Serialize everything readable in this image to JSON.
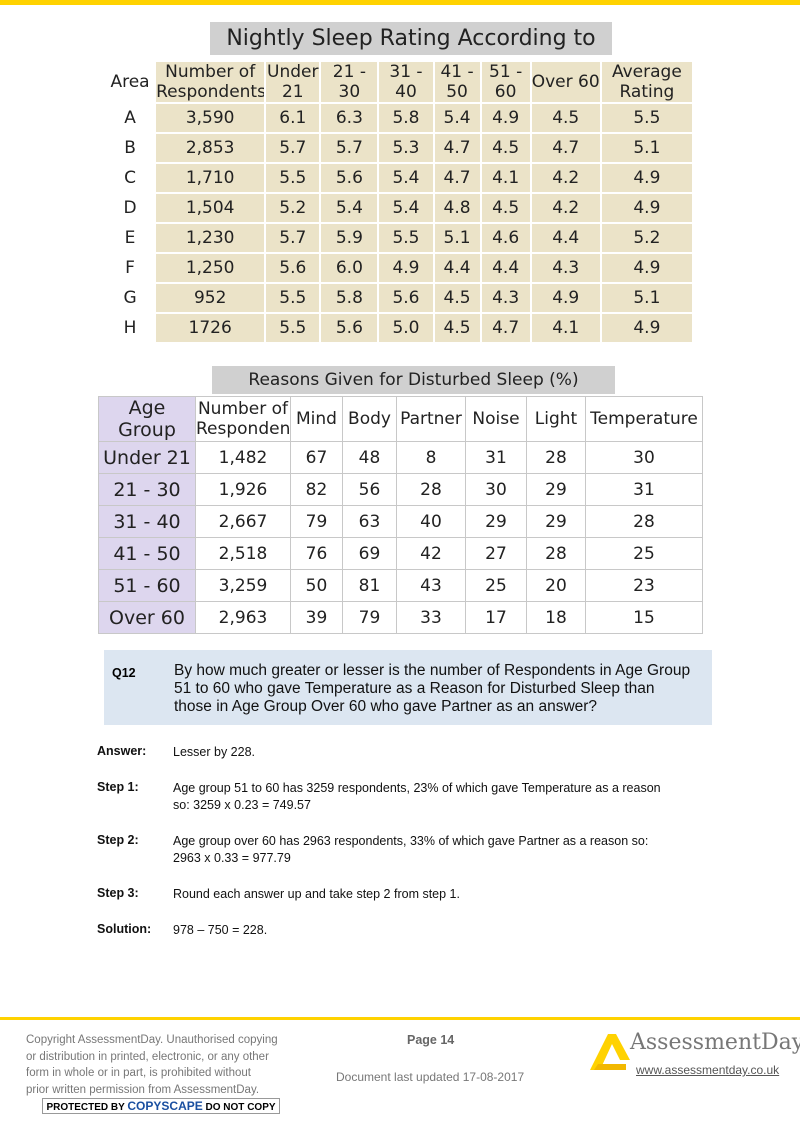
{
  "table1": {
    "title": "Nightly Sleep Rating According to Age",
    "header": [
      "Area",
      "Number of Respondents",
      "Under 21",
      "21 - 30",
      "31 - 40",
      "41 - 50",
      "51 - 60",
      "Over 60",
      "Average Rating"
    ],
    "rows": [
      [
        "A",
        "3,590",
        "6.1",
        "6.3",
        "5.8",
        "5.4",
        "4.9",
        "4.5",
        "5.5"
      ],
      [
        "B",
        "2,853",
        "5.7",
        "5.7",
        "5.3",
        "4.7",
        "4.5",
        "4.7",
        "5.1"
      ],
      [
        "C",
        "1,710",
        "5.5",
        "5.6",
        "5.4",
        "4.7",
        "4.1",
        "4.2",
        "4.9"
      ],
      [
        "D",
        "1,504",
        "5.2",
        "5.4",
        "5.4",
        "4.8",
        "4.5",
        "4.2",
        "4.9"
      ],
      [
        "E",
        "1,230",
        "5.7",
        "5.9",
        "5.5",
        "5.1",
        "4.6",
        "4.4",
        "5.2"
      ],
      [
        "F",
        "1,250",
        "5.6",
        "6.0",
        "4.9",
        "4.4",
        "4.4",
        "4.3",
        "4.9"
      ],
      [
        "G",
        "952",
        "5.5",
        "5.8",
        "5.6",
        "4.5",
        "4.3",
        "4.9",
        "5.1"
      ],
      [
        "H",
        "1726",
        "5.5",
        "5.6",
        "5.0",
        "4.5",
        "4.7",
        "4.1",
        "4.9"
      ]
    ]
  },
  "table2": {
    "title": "Reasons Given for Disturbed Sleep (%)",
    "header": [
      "Age Group",
      "Number of Respondents",
      "Mind",
      "Body",
      "Partner",
      "Noise",
      "Light",
      "Temperature"
    ],
    "rows": [
      [
        "Under 21",
        "1,482",
        "67",
        "48",
        "8",
        "31",
        "28",
        "30"
      ],
      [
        "21 - 30",
        "1,926",
        "82",
        "56",
        "28",
        "30",
        "29",
        "31"
      ],
      [
        "31 - 40",
        "2,667",
        "79",
        "63",
        "40",
        "29",
        "29",
        "28"
      ],
      [
        "41 - 50",
        "2,518",
        "76",
        "69",
        "42",
        "27",
        "28",
        "25"
      ],
      [
        "51 - 60",
        "3,259",
        "50",
        "81",
        "43",
        "25",
        "20",
        "23"
      ],
      [
        "Over 60",
        "2,963",
        "39",
        "79",
        "33",
        "17",
        "18",
        "15"
      ]
    ]
  },
  "question": {
    "label": "Q12",
    "text": "By how much greater or lesser is the number of Respondents in Age Group 51 to 60 who gave Temperature as a Reason for Disturbed Sleep than those in Age Group Over 60 who gave Partner as an answer?"
  },
  "steps": [
    {
      "label": "Answer:",
      "lines": [
        "Lesser by 228."
      ]
    },
    {
      "label": "Step 1:",
      "lines": [
        "Age group 51 to 60 has 3259 respondents, 23% of which gave Temperature as a reason",
        "so: 3259 x 0.23 = 749.57"
      ]
    },
    {
      "label": "Step 2:",
      "lines": [
        "Age group over 60 has 2963 respondents, 33% of which gave Partner as a reason so:",
        "2963 x 0.33 = 977.79"
      ]
    },
    {
      "label": "Step 3:",
      "lines": [
        "Round each answer up and take step 2 from step 1."
      ]
    },
    {
      "label": "Solution:",
      "lines": [
        "978 – 750 = 228."
      ]
    }
  ],
  "footer": {
    "copyright": [
      "Copyright AssessmentDay. Unauthorised copying",
      "or distribution in printed, electronic, or any other",
      "form in whole or in part, is prohibited without",
      "prior written permission from AssessmentDay."
    ],
    "copyscape": [
      "PROTECTED BY",
      "COPYSCAPE",
      "DO NOT COPY"
    ],
    "page": "Page 14",
    "updated": "Document last updated 17-08-2017",
    "logo": "AssessmentDay",
    "url": "www.assessmentday.co.uk"
  }
}
